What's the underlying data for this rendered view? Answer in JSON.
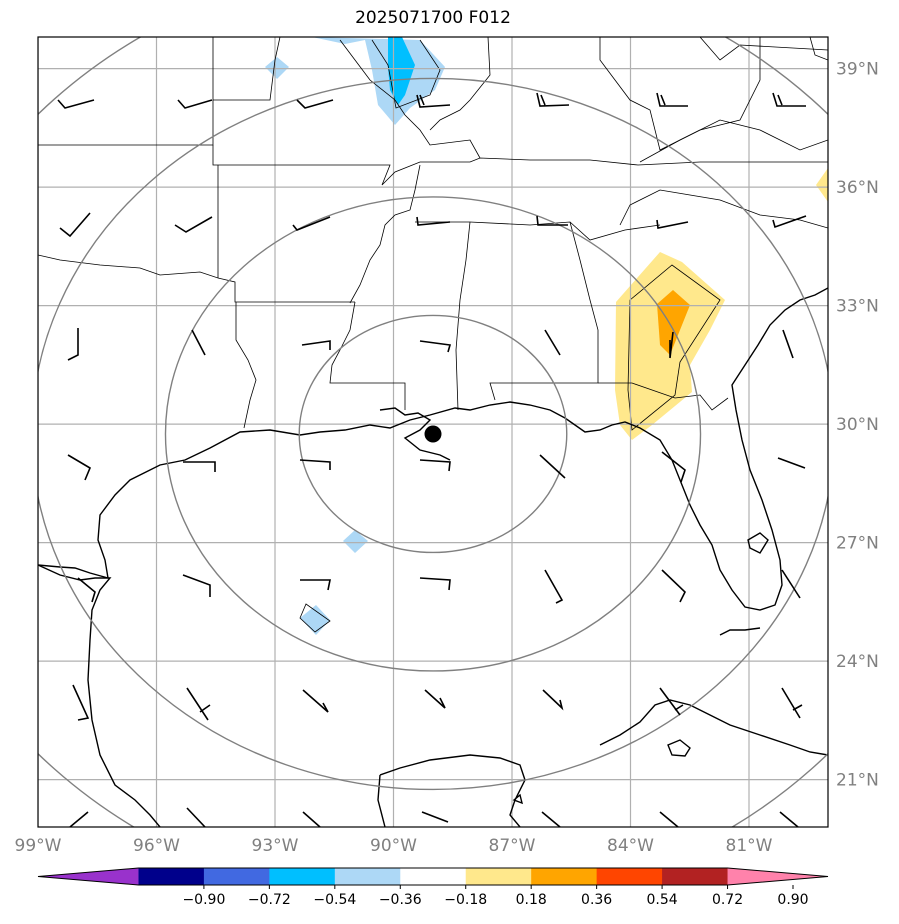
{
  "title": "2025071700 F012",
  "map": {
    "lon_range": [
      -99,
      -79
    ],
    "lat_range": [
      19.8,
      39.8
    ],
    "lon_ticks": [
      -99,
      -96,
      -93,
      -90,
      -87,
      -84,
      -81
    ],
    "lat_ticks": [
      21,
      24,
      27,
      30,
      33,
      36,
      39
    ],
    "lon_tick_labels": [
      "99°W",
      "96°W",
      "93°W",
      "90°W",
      "87°W",
      "84°W",
      "81°W"
    ],
    "lat_tick_labels": [
      "21°N",
      "24°N",
      "27°N",
      "30°N",
      "33°N",
      "36°N",
      "39°N"
    ],
    "center_marker": {
      "lon": -89.0,
      "lat": 29.75
    },
    "range_rings_deg": [
      3,
      6,
      9,
      12
    ],
    "colors": {
      "grid": "#b0b0b0",
      "rings": "#808080",
      "coast": "#000000",
      "tick_label": "#808080"
    }
  },
  "colorbar": {
    "tick_labels": [
      "−0.90",
      "−0.72",
      "−0.54",
      "−0.36",
      "−0.18",
      "0.18",
      "0.36",
      "0.54",
      "0.72",
      "0.90"
    ],
    "under_color": "#9932cc",
    "over_color": "#ff82ab",
    "colors": [
      "#9932cc",
      "#00008b",
      "#4169e1",
      "#00bfff",
      "#add8f6",
      "#ffffff",
      "#ffe88c",
      "#ffa500",
      "#ff4500",
      "#b22222",
      "#ff82ab"
    ]
  }
}
